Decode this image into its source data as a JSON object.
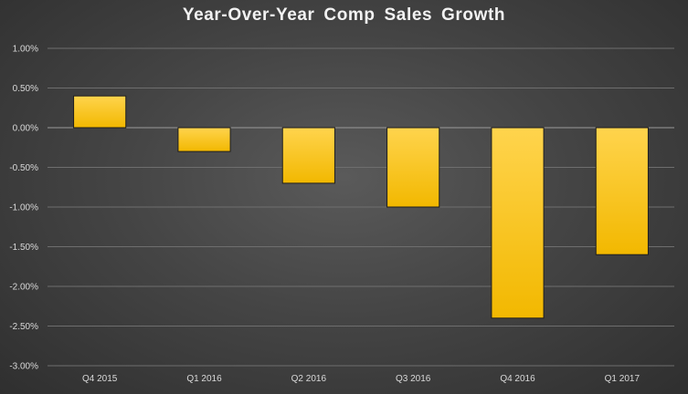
{
  "chart_data": {
    "type": "bar",
    "title": "Year-Over-Year  Comp  Sales  Growth",
    "categories": [
      "Q4 2015",
      "Q1 2016",
      "Q2 2016",
      "Q3 2016",
      "Q4 2016",
      "Q1 2017"
    ],
    "values": [
      0.4,
      -0.3,
      -0.7,
      -1.0,
      -2.4,
      -1.6
    ],
    "unit": "%",
    "ylim": [
      -3.0,
      1.0
    ],
    "yticks": [
      1.0,
      0.5,
      0.0,
      -0.5,
      -1.0,
      -1.5,
      -2.0,
      -2.5,
      -3.0
    ],
    "ytick_labels": [
      "1.00%",
      "0.50%",
      "0.00%",
      "-0.50%",
      "-1.00%",
      "-1.50%",
      "-2.00%",
      "-2.50%",
      "-3.00%"
    ],
    "grid": true,
    "legend": "none",
    "colors": {
      "bar_top": "#ffd44d",
      "bar_bottom": "#f2b800",
      "gridline": "#6e6e6e",
      "zero_line": "#9a9a9a",
      "text": "#d9d9d9"
    }
  }
}
